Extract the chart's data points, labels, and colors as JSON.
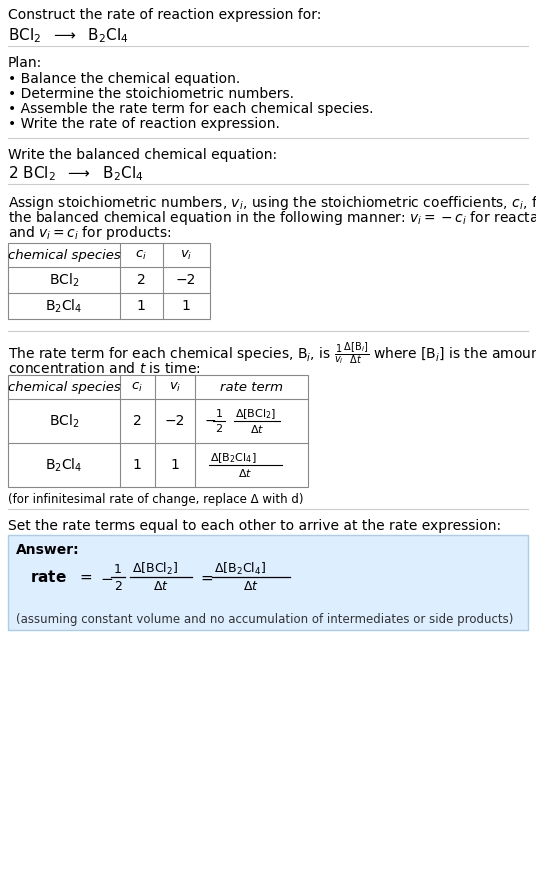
{
  "title_line1": "Construct the rate of reaction expression for:",
  "title_line2": "BCl$_2$  $\\longrightarrow$  B$_2$Cl$_4$",
  "plan_header": "Plan:",
  "plan_bullets": [
    "• Balance the chemical equation.",
    "• Determine the stoichiometric numbers.",
    "• Assemble the rate term for each chemical species.",
    "• Write the rate of reaction expression."
  ],
  "balanced_header": "Write the balanced chemical equation:",
  "balanced_eq": "2 BCl$_2$  $\\longrightarrow$  B$_2$Cl$_4$",
  "stoich_lines": [
    "Assign stoichiometric numbers, $v_i$, using the stoichiometric coefficients, $c_i$, from",
    "the balanced chemical equation in the following manner: $v_i = -c_i$ for reactants",
    "and $v_i = c_i$ for products:"
  ],
  "table1_headers": [
    "chemical species",
    "$c_i$",
    "$v_i$"
  ],
  "table1_rows": [
    [
      "BCl$_2$",
      "2",
      "−2"
    ],
    [
      "B$_2$Cl$_4$",
      "1",
      "1"
    ]
  ],
  "rate_line1": "The rate term for each chemical species, B$_i$, is $\\frac{1}{v_i}\\frac{\\Delta[\\mathrm{B}_i]}{\\Delta t}$ where [B$_i$] is the amount",
  "rate_line2": "concentration and $t$ is time:",
  "table2_headers": [
    "chemical species",
    "$c_i$",
    "$v_i$",
    "rate term"
  ],
  "table2_row1_species": "BCl$_2$",
  "table2_row1_ci": "2",
  "table2_row1_vi": "−2",
  "table2_row1_rate_minus": "−",
  "table2_row1_rate_frac": "$\\frac{1}{2}$",
  "table2_row1_rate_num": "$\\Delta$[BCl$_2$]",
  "table2_row1_rate_den": "$\\Delta t$",
  "table2_row2_species": "B$_2$Cl$_4$",
  "table2_row2_ci": "1",
  "table2_row2_vi": "1",
  "table2_row2_rate_num": "$\\Delta$[B$_2$Cl$_4$]",
  "table2_row2_rate_den": "$\\Delta t$",
  "infinitesimal_note": "(for infinitesimal rate of change, replace Δ with d)",
  "set_equal_text": "Set the rate terms equal to each other to arrive at the rate expression:",
  "answer_label": "Answer:",
  "answer_note": "(assuming constant volume and no accumulation of intermediates or side products)",
  "bg_color": "#ffffff",
  "answer_box_color": "#ddeeff",
  "sep_color": "#cccccc",
  "table_color": "#888888"
}
